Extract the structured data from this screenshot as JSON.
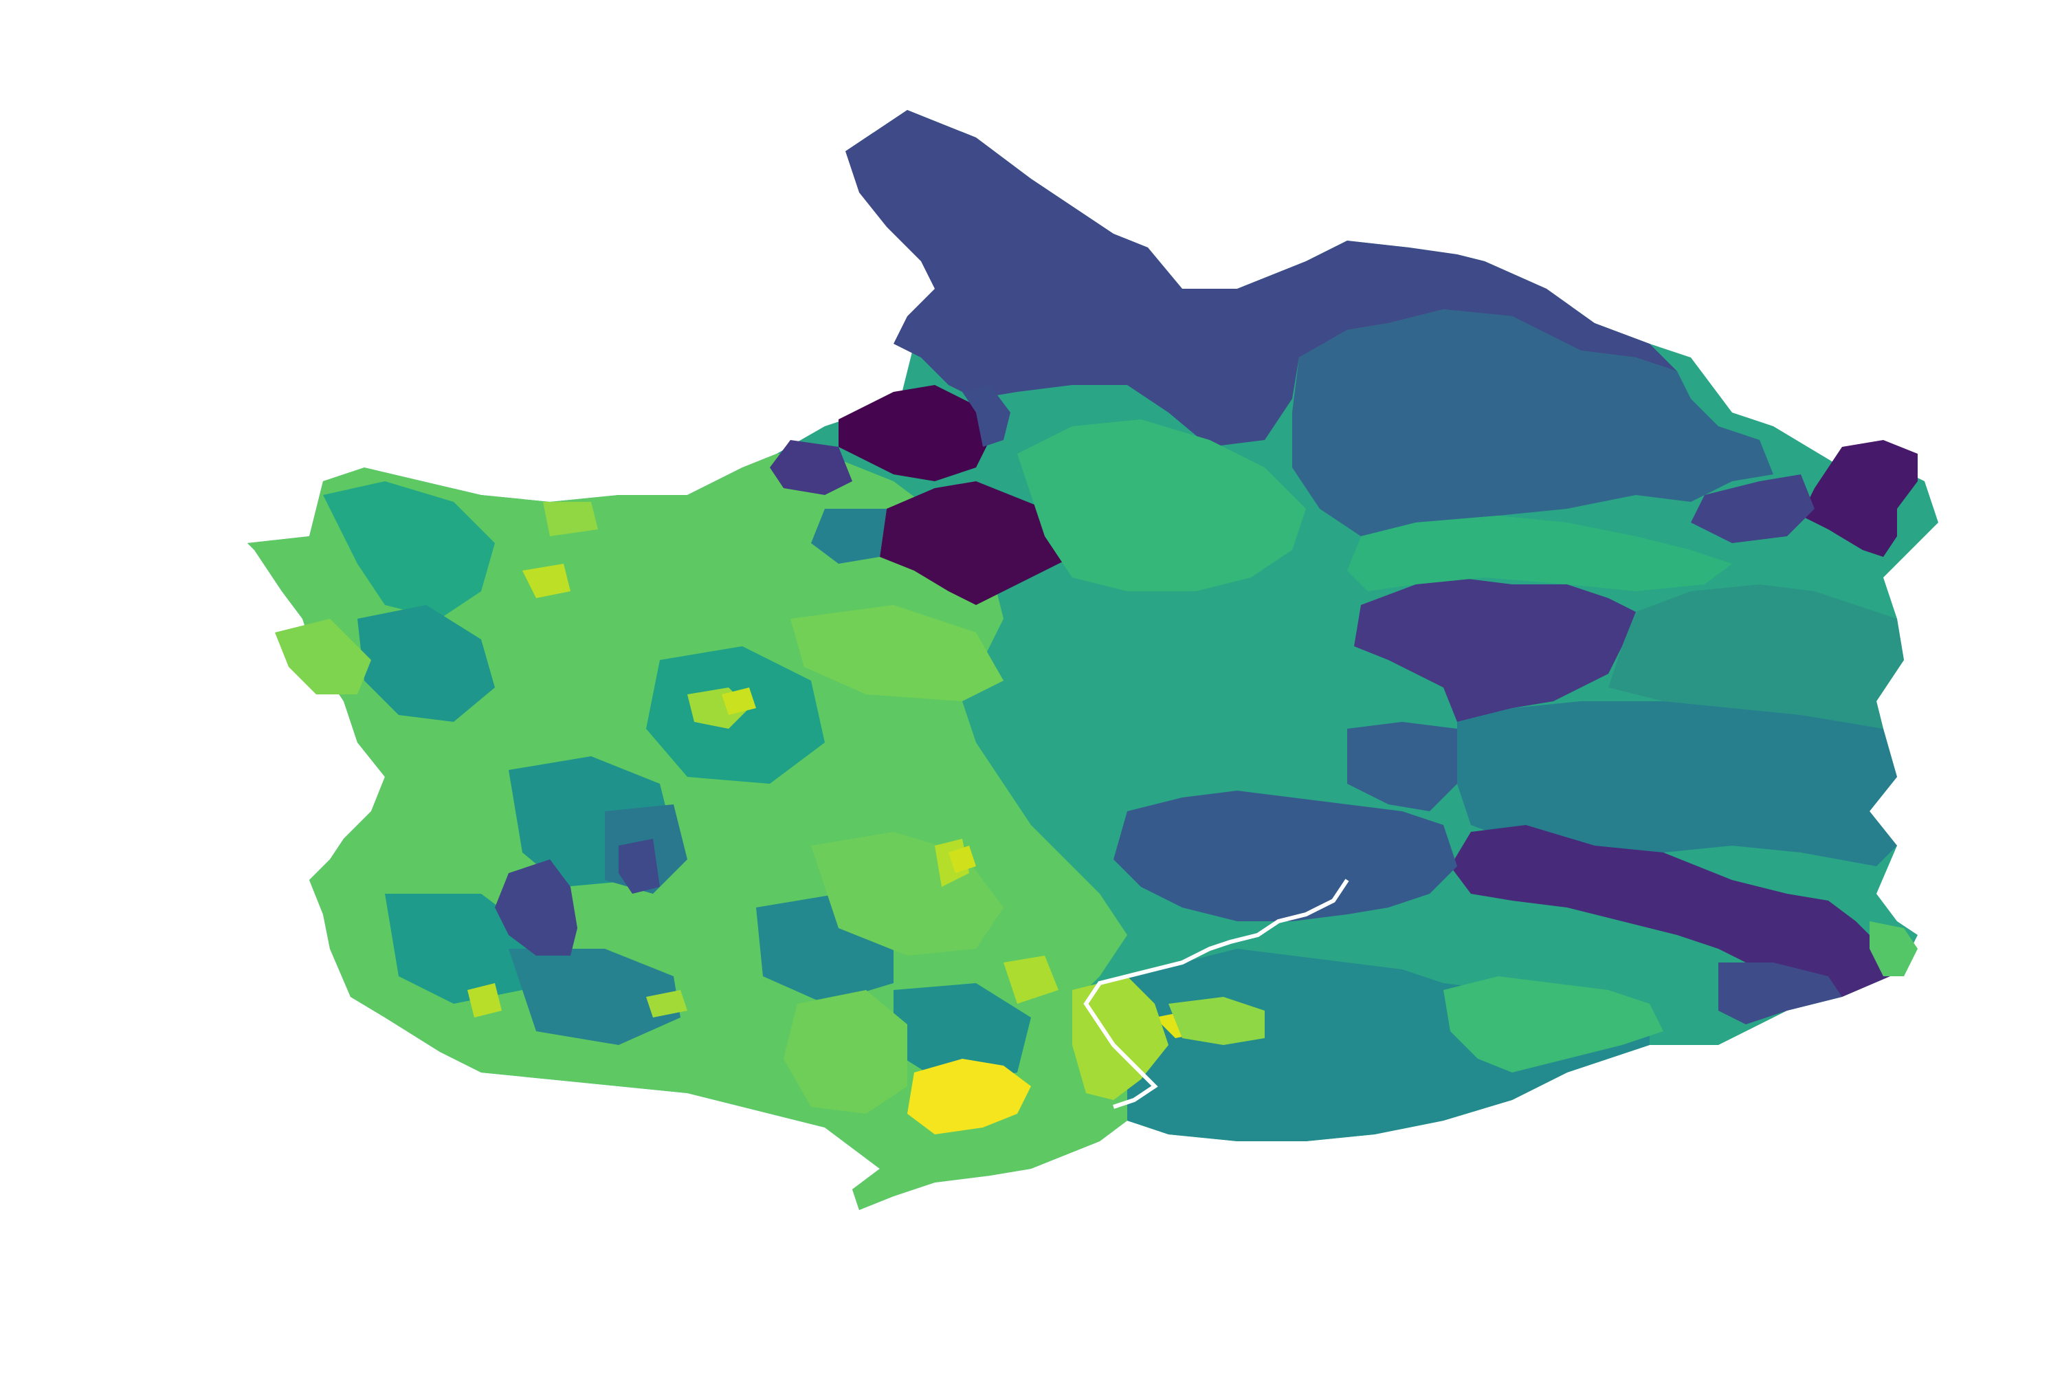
{
  "map": {
    "type": "choropleth",
    "colormap": "viridis",
    "title": "",
    "legend": "none",
    "axes": "hidden",
    "regions": [
      {
        "name": "north-lobe",
        "color": "#3f4a89"
      },
      {
        "name": "north-east-upland",
        "color": "#33668d"
      },
      {
        "name": "east-block",
        "color": "#2a9585"
      },
      {
        "name": "north-west-dark-a",
        "color": "#45054f"
      },
      {
        "name": "north-west-dark-b",
        "color": "#470a51"
      },
      {
        "name": "north-west-purple",
        "color": "#443a83"
      },
      {
        "name": "east-corner",
        "color": "#47196a"
      },
      {
        "name": "central-purple",
        "color": "#463a85"
      },
      {
        "name": "south-east-purple",
        "color": "#472a7a"
      },
      {
        "name": "central-south-blue",
        "color": "#375a8c"
      },
      {
        "name": "west-purple",
        "color": "#404687"
      },
      {
        "name": "yellow-district",
        "color": "#f5e51f"
      },
      {
        "name": "south-east-teal",
        "color": "#238b8d"
      },
      {
        "name": "south-east-coast-green",
        "color": "#3bbb75"
      },
      {
        "name": "west-lime",
        "color": "#7ed34f"
      }
    ],
    "river": {
      "name": "river",
      "color": "#ffffff"
    }
  }
}
